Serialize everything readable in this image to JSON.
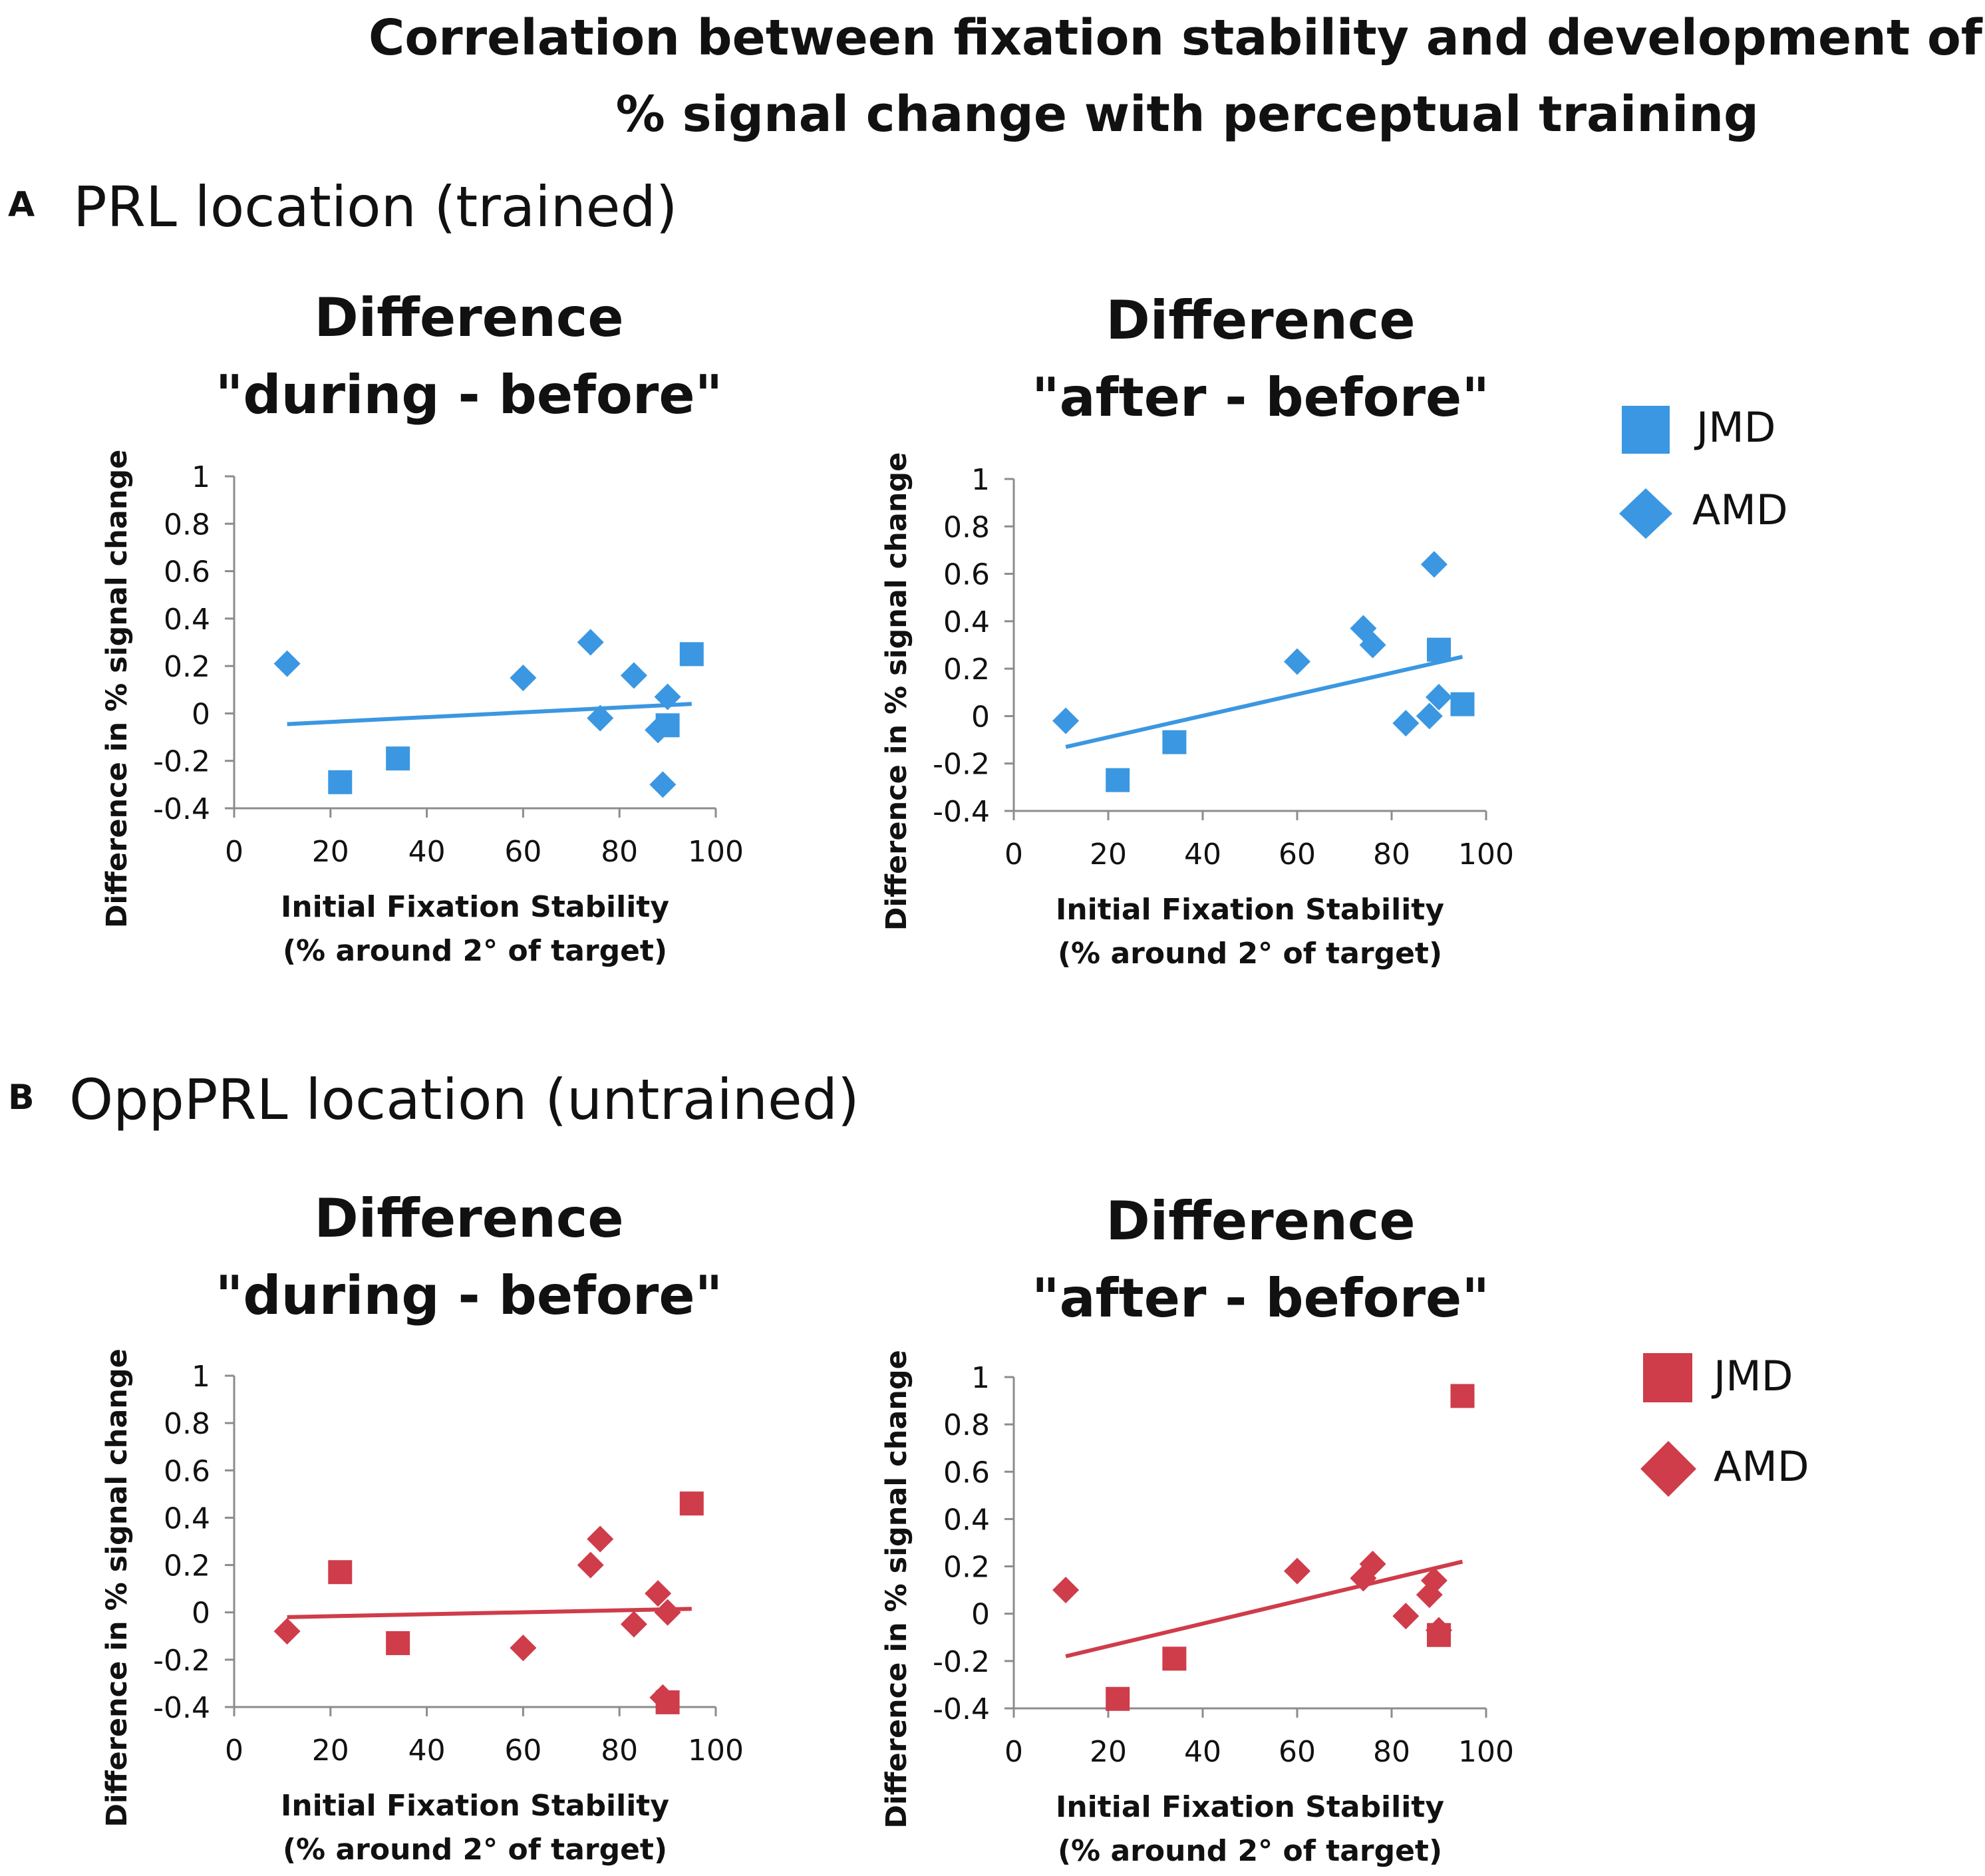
{
  "title": [
    "Correlation between fixation stability and development of",
    "% signal change with perceptual training"
  ],
  "panels": [
    {
      "letter": "A",
      "title": "PRL location (trained)",
      "legend": [
        {
          "label": "JMD",
          "marker": "square"
        },
        {
          "label": "AMD",
          "marker": "diamond"
        }
      ]
    },
    {
      "letter": "B",
      "title": "OppPRL location (untrained)",
      "legend": [
        {
          "label": "JMD",
          "marker": "square"
        },
        {
          "label": "AMD",
          "marker": "diamond"
        }
      ]
    }
  ],
  "colors": {
    "blue": "#3b97e1",
    "red": "#cf3c4a",
    "axis": "#8c8c8c",
    "text": "#111111"
  },
  "chart_data": [
    {
      "id": "A1",
      "type": "scatter",
      "color": "blue",
      "title": [
        "Difference",
        "\"during - before\""
      ],
      "xlabel": [
        "Initial Fixation Stability",
        "(% around 2° of target)"
      ],
      "ylabel": "Difference in % signal change",
      "xlim": [
        0,
        100
      ],
      "ylim": [
        -0.4,
        1
      ],
      "xticks": [
        "0",
        "20",
        "40",
        "60",
        "80",
        "100"
      ],
      "yticks": [
        "-0.4",
        "-0.2",
        "0",
        "0.2",
        "0.4",
        "0.6",
        "0.8",
        "1"
      ],
      "series": [
        {
          "name": "JMD",
          "marker": "square",
          "points": [
            [
              22,
              -0.29
            ],
            [
              34,
              -0.19
            ],
            [
              90,
              -0.05
            ],
            [
              95,
              0.25
            ]
          ]
        },
        {
          "name": "AMD",
          "marker": "diamond",
          "points": [
            [
              11,
              0.21
            ],
            [
              60,
              0.15
            ],
            [
              74,
              0.3
            ],
            [
              76,
              -0.02
            ],
            [
              83,
              0.16
            ],
            [
              88,
              -0.07
            ],
            [
              89,
              -0.3
            ],
            [
              90,
              0.07
            ]
          ]
        }
      ],
      "trendline": [
        [
          11,
          -0.045
        ],
        [
          95,
          0.04
        ]
      ]
    },
    {
      "id": "A2",
      "type": "scatter",
      "color": "blue",
      "title": [
        "Difference",
        "\"after - before\""
      ],
      "xlabel": [
        "Initial Fixation Stability",
        "(% around 2° of target)"
      ],
      "ylabel": "Difference in % signal change",
      "xlim": [
        0,
        100
      ],
      "ylim": [
        -0.4,
        1
      ],
      "xticks": [
        "0",
        "20",
        "40",
        "60",
        "80",
        "100"
      ],
      "yticks": [
        "-0.4",
        "-0.2",
        "0",
        "0.2",
        "0.4",
        "0.6",
        "0.8",
        "1"
      ],
      "series": [
        {
          "name": "JMD",
          "marker": "square",
          "points": [
            [
              22,
              -0.27
            ],
            [
              34,
              -0.11
            ],
            [
              90,
              0.28
            ],
            [
              95,
              0.05
            ]
          ]
        },
        {
          "name": "AMD",
          "marker": "diamond",
          "points": [
            [
              11,
              -0.02
            ],
            [
              60,
              0.23
            ],
            [
              74,
              0.37
            ],
            [
              76,
              0.3
            ],
            [
              83,
              -0.03
            ],
            [
              88,
              0.0
            ],
            [
              89,
              0.64
            ],
            [
              90,
              0.08
            ]
          ]
        }
      ],
      "trendline": [
        [
          11,
          -0.13
        ],
        [
          95,
          0.25
        ]
      ]
    },
    {
      "id": "B1",
      "type": "scatter",
      "color": "red",
      "title": [
        "Difference",
        "\"during - before\""
      ],
      "xlabel": [
        "Initial Fixation Stability",
        "(% around 2° of target)"
      ],
      "ylabel": "Difference in % signal change",
      "xlim": [
        0,
        100
      ],
      "ylim": [
        -0.4,
        1
      ],
      "xticks": [
        "0",
        "20",
        "40",
        "60",
        "80",
        "100"
      ],
      "yticks": [
        "-0.4",
        "-0.2",
        "0",
        "0.2",
        "0.4",
        "0.6",
        "0.8",
        "1"
      ],
      "series": [
        {
          "name": "JMD",
          "marker": "square",
          "points": [
            [
              22,
              0.17
            ],
            [
              34,
              -0.13
            ],
            [
              90,
              -0.38
            ],
            [
              95,
              0.46
            ]
          ]
        },
        {
          "name": "AMD",
          "marker": "diamond",
          "points": [
            [
              11,
              -0.08
            ],
            [
              60,
              -0.15
            ],
            [
              74,
              0.2
            ],
            [
              76,
              0.31
            ],
            [
              83,
              -0.05
            ],
            [
              88,
              0.08
            ],
            [
              89,
              -0.36
            ],
            [
              90,
              0.0
            ]
          ]
        }
      ],
      "trendline": [
        [
          11,
          -0.02
        ],
        [
          95,
          0.015
        ]
      ]
    },
    {
      "id": "B2",
      "type": "scatter",
      "color": "red",
      "title": [
        "Difference",
        "\"after - before\""
      ],
      "xlabel": [
        "Initial Fixation Stability",
        "(% around 2° of target)"
      ],
      "ylabel": "Difference in % signal change",
      "xlim": [
        0,
        100
      ],
      "ylim": [
        -0.4,
        1
      ],
      "xticks": [
        "0",
        "20",
        "40",
        "60",
        "80",
        "100"
      ],
      "yticks": [
        "-0.4",
        "-0.2",
        "0",
        "0.2",
        "0.4",
        "0.6",
        "0.8",
        "1"
      ],
      "series": [
        {
          "name": "JMD",
          "marker": "square",
          "points": [
            [
              22,
              -0.36
            ],
            [
              34,
              -0.19
            ],
            [
              90,
              -0.09
            ],
            [
              95,
              0.92
            ]
          ]
        },
        {
          "name": "AMD",
          "marker": "diamond",
          "points": [
            [
              11,
              0.1
            ],
            [
              60,
              0.18
            ],
            [
              74,
              0.15
            ],
            [
              76,
              0.21
            ],
            [
              83,
              -0.01
            ],
            [
              88,
              0.08
            ],
            [
              89,
              0.14
            ],
            [
              90,
              -0.07
            ]
          ]
        }
      ],
      "trendline": [
        [
          11,
          -0.18
        ],
        [
          95,
          0.22
        ]
      ]
    }
  ]
}
